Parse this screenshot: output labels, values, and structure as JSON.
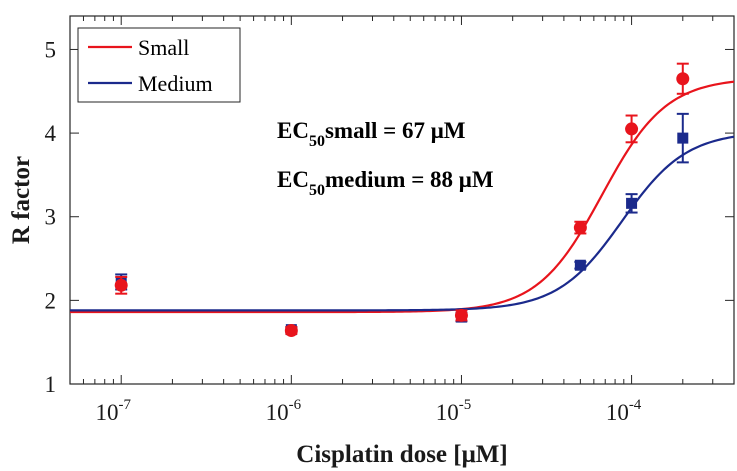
{
  "chart_data": {
    "type": "scatter",
    "title": "",
    "xlabel": "Cisplatin dose [μM]",
    "ylabel": "R factor",
    "xscale": "log",
    "xlim": [
      5e-08,
      0.0004
    ],
    "ylim": [
      1,
      5.4
    ],
    "xticks": [
      {
        "base": "10",
        "exp": "-7",
        "value": 1e-07
      },
      {
        "base": "10",
        "exp": "-6",
        "value": 1e-06
      },
      {
        "base": "10",
        "exp": "-5",
        "value": 1e-05
      },
      {
        "base": "10",
        "exp": "-4",
        "value": 0.0001
      }
    ],
    "yticks": [
      {
        "label": "1",
        "value": 1
      },
      {
        "label": "2",
        "value": 2
      },
      {
        "label": "3",
        "value": 3
      },
      {
        "label": "4",
        "value": 4
      },
      {
        "label": "5",
        "value": 5
      }
    ],
    "grid": false,
    "legend_position": "top-left",
    "annotations": [
      {
        "main": "EC",
        "sub": "50",
        "rest": "small = 67 μM"
      },
      {
        "main": "EC",
        "sub": "50",
        "rest": "medium = 88 μM"
      }
    ],
    "series": [
      {
        "name": "Small",
        "color": "#e8141c",
        "marker": "circle",
        "points": [
          {
            "x": 1e-07,
            "y": 2.18,
            "err": 0.1
          },
          {
            "x": 1e-06,
            "y": 1.64,
            "err": 0.04
          },
          {
            "x": 1e-05,
            "y": 1.82,
            "err": 0.06
          },
          {
            "x": 5e-05,
            "y": 2.87,
            "err": 0.07
          },
          {
            "x": 0.0001,
            "y": 4.05,
            "err": 0.16
          },
          {
            "x": 0.0002,
            "y": 4.65,
            "err": 0.18
          }
        ],
        "fit": {
          "bottom": 1.86,
          "top": 4.66,
          "ec50": 6.7e-05,
          "hill": 2.3
        }
      },
      {
        "name": "Medium",
        "color": "#1b2a8c",
        "marker": "square",
        "points": [
          {
            "x": 1e-07,
            "y": 2.22,
            "err": 0.09
          },
          {
            "x": 1e-06,
            "y": 1.65,
            "err": 0.03
          },
          {
            "x": 1e-05,
            "y": 1.8,
            "err": 0.05
          },
          {
            "x": 5e-05,
            "y": 2.42,
            "err": 0.04
          },
          {
            "x": 0.0001,
            "y": 3.16,
            "err": 0.11
          },
          {
            "x": 0.0002,
            "y": 3.94,
            "err": 0.29
          }
        ],
        "fit": {
          "bottom": 1.88,
          "top": 4.02,
          "ec50": 8.8e-05,
          "hill": 2.3
        }
      }
    ]
  }
}
